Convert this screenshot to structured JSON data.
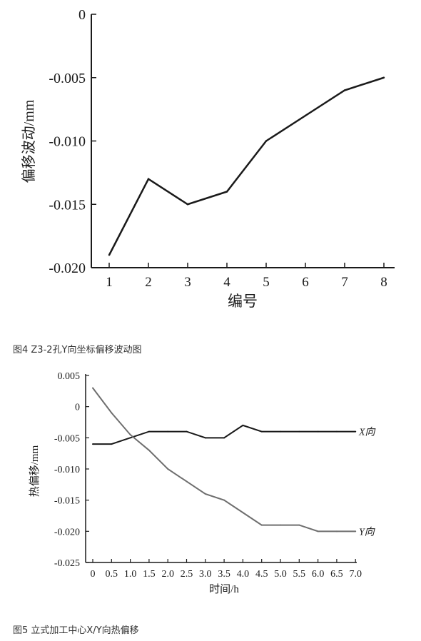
{
  "chart_data": [
    {
      "type": "line",
      "ylabel": "偏移波动/mm",
      "xlabel": "编号",
      "x": [
        1,
        2,
        3,
        4,
        5,
        6,
        7,
        8
      ],
      "series": [
        {
          "values": [
            -0.019,
            -0.013,
            -0.015,
            -0.014,
            -0.01,
            -0.008,
            -0.006,
            -0.005
          ]
        }
      ],
      "ylim": [
        -0.02,
        0
      ],
      "yticks": [
        "0",
        "-0.005",
        "-0.010",
        "-0.015",
        "-0.020"
      ],
      "ytick_values": [
        0,
        -0.005,
        -0.01,
        -0.015,
        -0.02
      ],
      "xticks": [
        "1",
        "2",
        "3",
        "4",
        "5",
        "6",
        "7",
        "8"
      ],
      "grid": false,
      "caption": "图4 Z3-2孔Y向坐标偏移波动图"
    },
    {
      "type": "line",
      "ylabel": "热偏移/mm",
      "xlabel": "时间/h",
      "x": [
        0,
        0.5,
        1.0,
        1.5,
        2.0,
        2.5,
        3.0,
        3.5,
        4.0,
        4.5,
        5.0,
        5.5,
        6.0,
        6.5,
        7.0
      ],
      "series": [
        {
          "name": "X向",
          "color": "#1a1a1a",
          "values": [
            -0.006,
            -0.006,
            -0.005,
            -0.004,
            -0.004,
            -0.004,
            -0.005,
            -0.005,
            -0.003,
            -0.004,
            -0.004,
            -0.004,
            -0.004,
            -0.004,
            -0.004
          ]
        },
        {
          "name": "Y向",
          "color": "#6e6e6e",
          "values": [
            0.003,
            -0.001,
            -0.0045,
            -0.007,
            -0.01,
            -0.012,
            -0.014,
            -0.015,
            -0.017,
            -0.019,
            -0.019,
            -0.019,
            -0.02,
            -0.02,
            -0.02
          ]
        }
      ],
      "ylim": [
        -0.025,
        0.005
      ],
      "yticks": [
        "0.005",
        "0",
        "-0.005",
        "-0.010",
        "-0.015",
        "-0.020",
        "-0.025"
      ],
      "ytick_values": [
        0.005,
        0,
        -0.005,
        -0.01,
        -0.015,
        -0.02,
        -0.025
      ],
      "xticks": [
        "0",
        "0.5",
        "1.0",
        "1.5",
        "2.0",
        "2.5",
        "3.0",
        "3.5",
        "4.0",
        "4.5",
        "5.0",
        "5.5",
        "6.0",
        "6.5",
        "7.0"
      ],
      "grid": false,
      "caption": "图5 立式加工中心X/Y向热偏移"
    }
  ]
}
